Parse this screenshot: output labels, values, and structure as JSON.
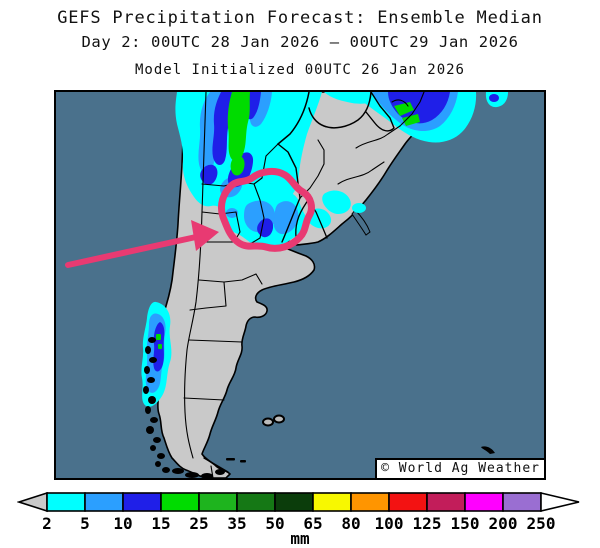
{
  "title": {
    "line1": "GEFS Precipitation Forecast: Ensemble Median",
    "line2": "Day 2: 00UTC 28 Jan 2026 — 00UTC 29 Jan 2026",
    "line3": "Model Initialized 00UTC 26 Jan 2026"
  },
  "map": {
    "credit": "© World Ag Weather",
    "colors": {
      "ocean": "#4a718c",
      "land": "#c9c9c9",
      "coast": "#000000",
      "annotation": "#e83a72"
    },
    "precip_colors": {
      "mm2": "#00ffff",
      "mm5": "#2b9fff",
      "mm10": "#1f1fe8",
      "mm15": "#00dc00"
    }
  },
  "colorbar": {
    "unit": "mm",
    "ticks": [
      "2",
      "5",
      "10",
      "15",
      "25",
      "35",
      "50",
      "65",
      "80",
      "100",
      "125",
      "150",
      "200",
      "250"
    ],
    "cell_colors": [
      "#00ffff",
      "#2b9fff",
      "#1f1fe8",
      "#00dc00",
      "#1eb41e",
      "#157815",
      "#0b3d0b",
      "#f8f800",
      "#ff9500",
      "#f31212",
      "#c21d5a",
      "#ff00ff",
      "#9a6ed2"
    ],
    "below_min_color": "#c9c9c9",
    "above_max_color": "#ffffff"
  }
}
